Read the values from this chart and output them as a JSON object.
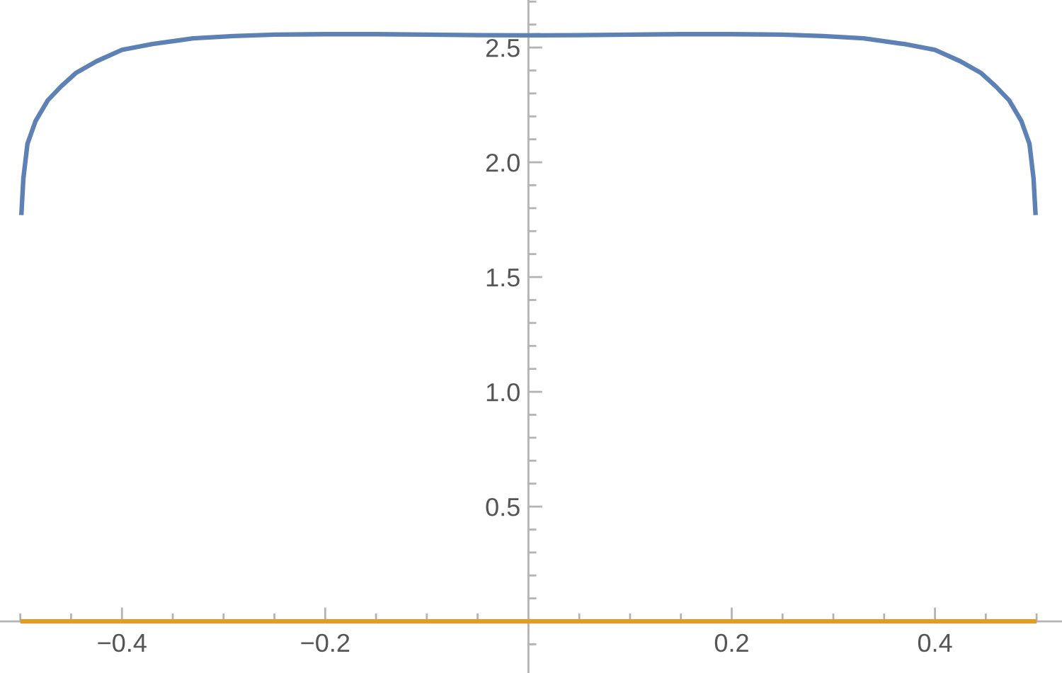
{
  "chart_data": {
    "type": "line",
    "x": [
      -0.499,
      -0.497,
      -0.493,
      -0.485,
      -0.473,
      -0.46,
      -0.445,
      -0.425,
      -0.4,
      -0.37,
      -0.33,
      -0.29,
      -0.25,
      -0.2,
      -0.15,
      -0.1,
      -0.05,
      0,
      0.05,
      0.1,
      0.15,
      0.2,
      0.25,
      0.29,
      0.33,
      0.37,
      0.4,
      0.425,
      0.445,
      0.46,
      0.473,
      0.485,
      0.493,
      0.497,
      0.499
    ],
    "series": [
      {
        "color": "#5e81b5",
        "values": [
          1.77,
          1.93,
          2.08,
          2.18,
          2.27,
          2.33,
          2.39,
          2.44,
          2.49,
          2.515,
          2.54,
          2.55,
          2.556,
          2.558,
          2.558,
          2.556,
          2.554,
          2.553,
          2.554,
          2.556,
          2.558,
          2.558,
          2.556,
          2.55,
          2.54,
          2.515,
          2.49,
          2.44,
          2.39,
          2.33,
          2.27,
          2.18,
          2.08,
          1.93,
          1.77
        ]
      },
      {
        "color": "#e19c24",
        "x": [
          -0.5,
          0.5
        ],
        "values": [
          0,
          0
        ]
      }
    ],
    "xlim": [
      -0.52,
      0.525
    ],
    "ylim": [
      -0.225,
      2.707
    ],
    "xticks": [
      {
        "value": -0.5,
        "label": null
      },
      {
        "value": -0.45,
        "label": null
      },
      {
        "value": -0.4,
        "label": "−0.4"
      },
      {
        "value": -0.35,
        "label": null
      },
      {
        "value": -0.3,
        "label": null
      },
      {
        "value": -0.25,
        "label": null
      },
      {
        "value": -0.2,
        "label": "−0.2"
      },
      {
        "value": -0.15,
        "label": null
      },
      {
        "value": -0.1,
        "label": null
      },
      {
        "value": -0.05,
        "label": null
      },
      {
        "value": 0.05,
        "label": null
      },
      {
        "value": 0.1,
        "label": null
      },
      {
        "value": 0.15,
        "label": null
      },
      0.2,
      {
        "value": 0.25,
        "label": null
      },
      {
        "value": 0.3,
        "label": null
      },
      {
        "value": 0.35,
        "label": null
      },
      0.4,
      {
        "value": 0.45,
        "label": null
      },
      {
        "value": 0.5,
        "label": null
      }
    ],
    "yticks": [
      {
        "value": -0.1,
        "label": null
      },
      {
        "value": 0.1,
        "label": null
      },
      {
        "value": 0.2,
        "label": null
      },
      {
        "value": 0.3,
        "label": null
      },
      {
        "value": 0.4,
        "label": null
      },
      0.5,
      {
        "value": 0.6,
        "label": null
      },
      {
        "value": 0.7,
        "label": null
      },
      {
        "value": 0.8,
        "label": null
      },
      {
        "value": 0.9,
        "label": null
      },
      {
        "value": 1,
        "label": "1.0"
      },
      {
        "value": 1.1,
        "label": null
      },
      {
        "value": 1.2,
        "label": null
      },
      {
        "value": 1.3,
        "label": null
      },
      {
        "value": 1.4,
        "label": null
      },
      1.5,
      {
        "value": 1.6,
        "label": null
      },
      {
        "value": 1.7,
        "label": null
      },
      {
        "value": 1.8,
        "label": null
      },
      {
        "value": 1.9,
        "label": null
      },
      {
        "value": 2,
        "label": "2.0"
      },
      {
        "value": 2.1,
        "label": null
      },
      {
        "value": 2.2,
        "label": null
      },
      {
        "value": 2.3,
        "label": null
      },
      {
        "value": 2.4,
        "label": null
      },
      2.5,
      {
        "value": 2.6,
        "label": null
      },
      {
        "value": 2.7,
        "label": null
      }
    ]
  }
}
